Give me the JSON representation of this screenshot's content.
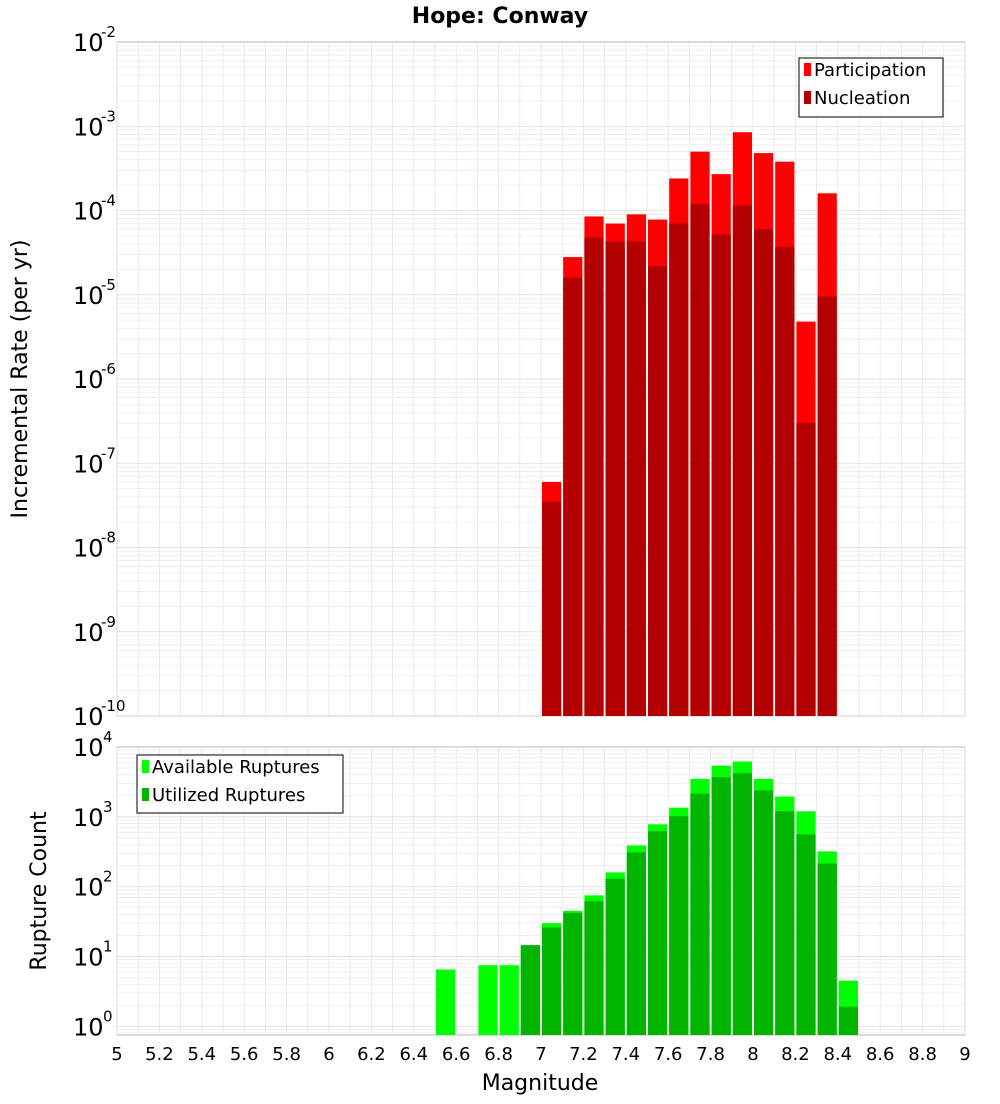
{
  "chart_data": [
    {
      "type": "bar",
      "title": "Hope: Conway",
      "xlabel": "",
      "ylabel": "Incremental Rate (per yr)",
      "yscale": "log",
      "xlim": [
        5,
        9
      ],
      "ylim": [
        1e-10,
        0.01
      ],
      "grid": true,
      "legend_position": "top-right",
      "y_tick_labels": [
        {
          "base": "10",
          "exp": "-10"
        },
        {
          "base": "10",
          "exp": "-9"
        },
        {
          "base": "10",
          "exp": "-8"
        },
        {
          "base": "10",
          "exp": "-7"
        },
        {
          "base": "10",
          "exp": "-6"
        },
        {
          "base": "10",
          "exp": "-5"
        },
        {
          "base": "10",
          "exp": "-4"
        },
        {
          "base": "10",
          "exp": "-3"
        },
        {
          "base": "10",
          "exp": "-2"
        }
      ],
      "x": [
        7.05,
        7.15,
        7.25,
        7.35,
        7.45,
        7.55,
        7.65,
        7.75,
        7.85,
        7.95,
        8.05,
        8.15,
        8.25,
        8.35
      ],
      "series": [
        {
          "name": "Participation",
          "color": "#ff0000",
          "values": [
            6e-08,
            2.8e-05,
            8.5e-05,
            7e-05,
            9e-05,
            7.8e-05,
            0.00024,
            0.0005,
            0.00027,
            0.00085,
            0.00048,
            0.00038,
            4.8e-06,
            0.00016
          ]
        },
        {
          "name": "Nucleation",
          "color": "#b40000",
          "values": [
            3.5e-08,
            1.6e-05,
            4.8e-05,
            4.3e-05,
            4.3e-05,
            2.2e-05,
            7e-05,
            0.00012,
            5.2e-05,
            0.000115,
            6e-05,
            3.7e-05,
            3e-07,
            9.5e-06
          ]
        }
      ]
    },
    {
      "type": "bar",
      "title": "",
      "xlabel": "Magnitude",
      "ylabel": "Rupture Count",
      "yscale": "log",
      "xlim": [
        5,
        9
      ],
      "ylim": [
        0.75,
        10000
      ],
      "grid": true,
      "legend_position": "top-left",
      "x_tick_labels": [
        "5",
        "5.2",
        "5.4",
        "5.6",
        "5.8",
        "6",
        "6.2",
        "6.4",
        "6.6",
        "6.8",
        "7",
        "7.2",
        "7.4",
        "7.6",
        "7.8",
        "8",
        "8.2",
        "8.4",
        "8.6",
        "8.8",
        "9"
      ],
      "y_tick_labels": [
        {
          "base": "10",
          "exp": "0"
        },
        {
          "base": "10",
          "exp": "1"
        },
        {
          "base": "10",
          "exp": "2"
        },
        {
          "base": "10",
          "exp": "3"
        },
        {
          "base": "10",
          "exp": "4"
        }
      ],
      "x": [
        6.55,
        6.75,
        6.85,
        6.95,
        7.05,
        7.15,
        7.25,
        7.35,
        7.45,
        7.55,
        7.65,
        7.75,
        7.85,
        7.95,
        8.05,
        8.15,
        8.25,
        8.35,
        8.45
      ],
      "series": [
        {
          "name": "Available Ruptures",
          "color": "#00ff00",
          "values": [
            6.5,
            7.5,
            7.5,
            14.5,
            30,
            45,
            75,
            160,
            390,
            780,
            1350,
            3500,
            5400,
            6200,
            3500,
            1950,
            1200,
            320,
            4.5
          ]
        },
        {
          "name": "Utilized Ruptures",
          "color": "#00b400",
          "values": [
            null,
            null,
            null,
            14.5,
            26,
            42,
            62,
            130,
            310,
            620,
            1020,
            2150,
            3700,
            4200,
            2400,
            1200,
            560,
            215,
            1.9
          ]
        }
      ]
    }
  ]
}
